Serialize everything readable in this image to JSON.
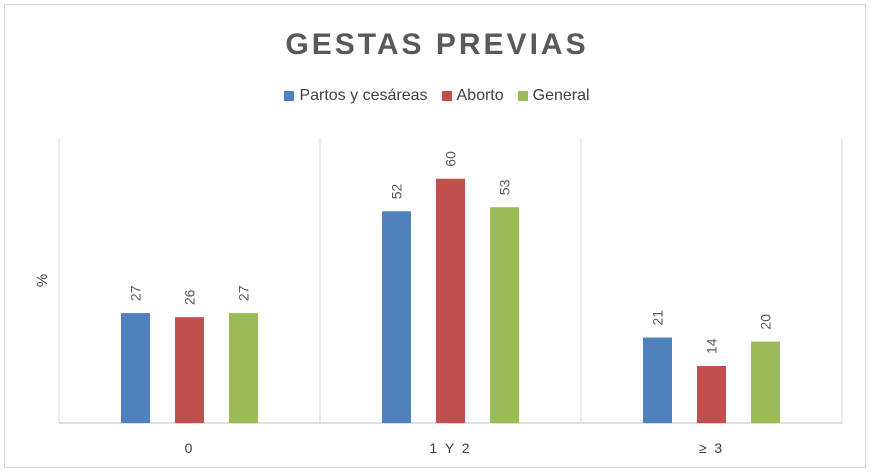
{
  "chart_data": {
    "type": "bar",
    "title": "GESTAS PREVIAS",
    "ylabel": "%",
    "xlabel": "",
    "categories": [
      "0",
      "1  Y  2",
      "≥  3"
    ],
    "series": [
      {
        "name": "Partos y cesáreas",
        "color": "#4f81bd",
        "values": [
          27,
          52,
          21
        ]
      },
      {
        "name": "Aborto",
        "color": "#c0504d",
        "values": [
          26,
          60,
          14
        ]
      },
      {
        "name": "General",
        "color": "#9bbb59",
        "values": [
          27,
          53,
          20
        ]
      }
    ],
    "ylim": [
      0,
      70
    ],
    "grid": false,
    "legend_position": "top"
  }
}
